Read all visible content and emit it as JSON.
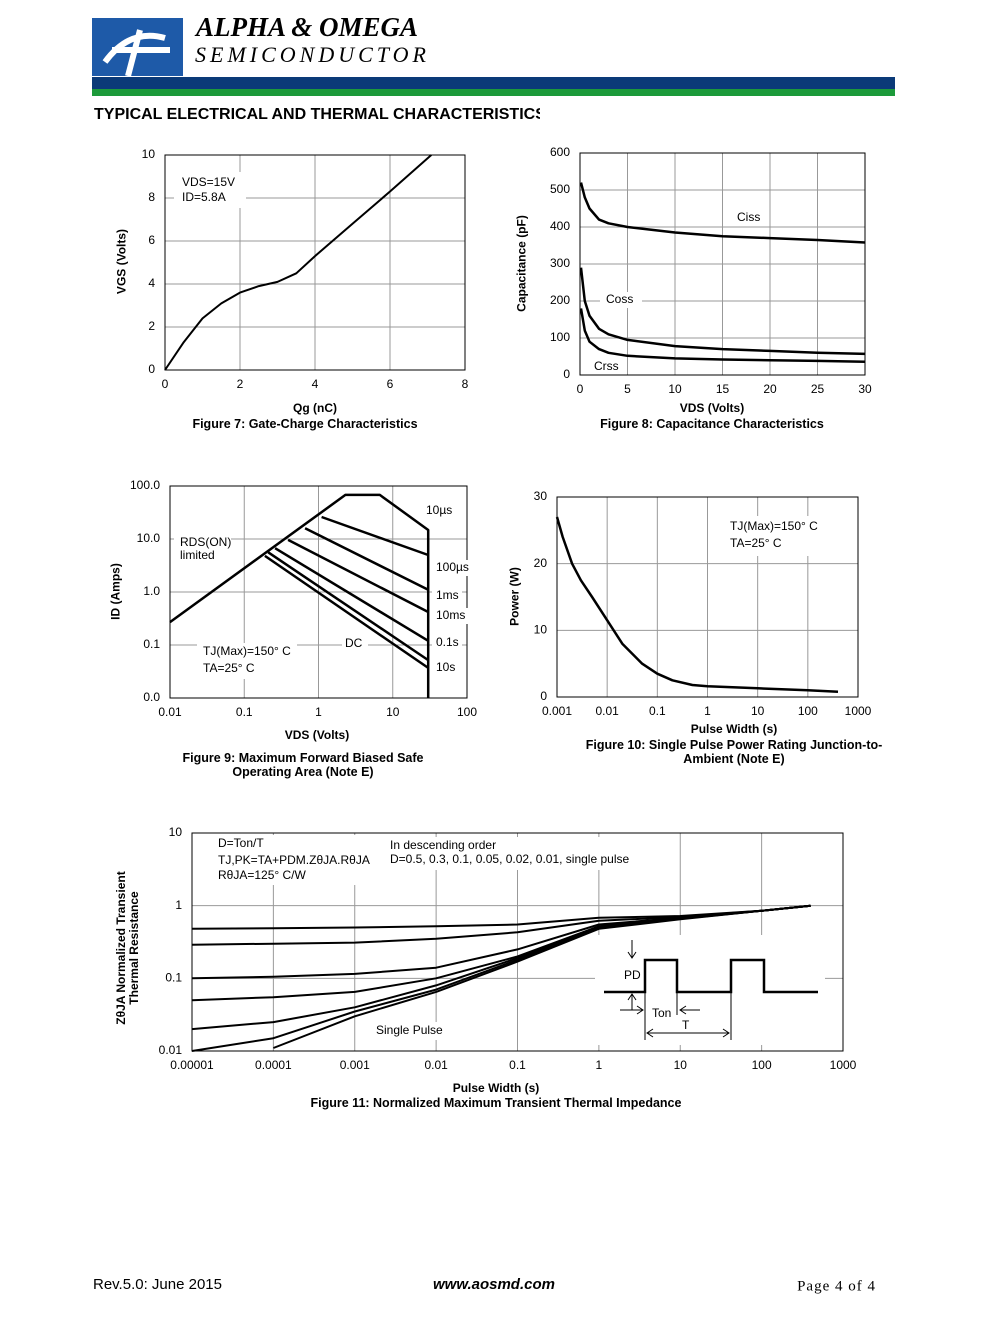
{
  "header": {
    "company": "ALPHA & OMEGA",
    "division": "SEMICONDUCTOR"
  },
  "section_title": "TYPICAL ELECTRICAL AND THERMAL CHARACTERISTICS",
  "chart_data": [
    {
      "type": "line",
      "title": "Figure 7: Gate-Charge Characteristics",
      "xlabel": "Qg (nC)",
      "ylabel": "VGS (Volts)",
      "annotations": [
        "VDS=15V",
        "ID=5.8A"
      ],
      "x": [
        0,
        0.5,
        1,
        1.5,
        2,
        2.5,
        3,
        3.5,
        4,
        5,
        6,
        7.1
      ],
      "values": [
        0,
        1.3,
        2.4,
        3.1,
        3.6,
        3.9,
        4.1,
        4.5,
        5.3,
        6.8,
        8.3,
        10
      ],
      "color": "#000000",
      "xlim": [
        0,
        8
      ],
      "xticks": [
        0,
        2,
        4,
        6,
        8
      ],
      "ylim": [
        0,
        10
      ],
      "yticks": [
        0,
        2,
        4,
        6,
        8,
        10
      ],
      "grid": true
    },
    {
      "type": "line",
      "title": "Figure 8: Capacitance Characteristics",
      "xlabel": "VDS (Volts)",
      "ylabel": "Capacitance (pF)",
      "x": [
        0.1,
        0.5,
        1,
        2,
        3,
        5,
        10,
        15,
        20,
        25,
        30
      ],
      "series": [
        {
          "name": "Ciss",
          "color": "#000000",
          "values": [
            520,
            480,
            450,
            420,
            410,
            400,
            385,
            375,
            370,
            365,
            358
          ]
        },
        {
          "name": "Coss",
          "color": "#000000",
          "values": [
            290,
            200,
            160,
            125,
            110,
            95,
            78,
            70,
            65,
            60,
            57
          ]
        },
        {
          "name": "Crss",
          "color": "#000000",
          "values": [
            180,
            120,
            90,
            70,
            60,
            52,
            45,
            42,
            40,
            38,
            36
          ]
        }
      ],
      "xlim": [
        0,
        30
      ],
      "xticks": [
        0,
        5,
        10,
        15,
        20,
        25,
        30
      ],
      "ylim": [
        0,
        600
      ],
      "yticks": [
        0,
        100,
        200,
        300,
        400,
        500,
        600
      ],
      "grid": true
    },
    {
      "type": "line",
      "title": "Figure 9: Maximum Forward Biased Safe Operating Area (Note E)",
      "xlabel": "VDS (Volts)",
      "ylabel": "ID (Amps)",
      "annotations": [
        "RDS(ON)",
        "limited",
        "TJ(Max)=150° C",
        "TA=25° C"
      ],
      "xlog": true,
      "ylog": true,
      "series": [
        {
          "name": "10µs",
          "color": "#000000",
          "x": [
            0.01,
            2.3,
            6.7,
            30,
            30
          ],
          "values": [
            0.27,
            68,
            68,
            14.8,
            0.01
          ]
        },
        {
          "name": "100µs",
          "color": "#000000",
          "x": [
            1.1,
            30
          ],
          "values": [
            26,
            5
          ]
        },
        {
          "name": "1ms",
          "color": "#000000",
          "x": [
            0.66,
            30
          ],
          "values": [
            16,
            1.1
          ]
        },
        {
          "name": "10ms",
          "color": "#000000",
          "x": [
            0.39,
            30
          ],
          "values": [
            9.6,
            0.42
          ]
        },
        {
          "name": "0.1s",
          "color": "#000000",
          "x": [
            0.26,
            30
          ],
          "values": [
            6.7,
            0.12
          ]
        },
        {
          "name": "10s",
          "color": "#000000",
          "x": [
            0.21,
            30
          ],
          "values": [
            5.6,
            0.052
          ]
        },
        {
          "name": "DC",
          "color": "#000000",
          "x": [
            0.19,
            30
          ],
          "values": [
            4.8,
            0.037
          ]
        }
      ],
      "xlim": [
        0.01,
        100
      ],
      "xticks": [
        0.01,
        0.1,
        1,
        10,
        100
      ],
      "ylim": [
        0.01,
        100
      ],
      "yticks": [
        {
          "value": 0.01,
          "label": "0.0"
        },
        0.1,
        {
          "value": 1,
          "label": "1.0"
        },
        {
          "value": 10,
          "label": "10.0"
        },
        {
          "value": 100,
          "label": "100.0"
        }
      ],
      "grid": true
    },
    {
      "type": "line",
      "title": "Figure 10: Single Pulse Power Rating Junction-to-Ambient (Note E)",
      "xlabel": "Pulse Width (s)",
      "ylabel": "Power (W)",
      "annotations": [
        "TJ(Max)=150° C",
        "TA=25° C"
      ],
      "xlog": true,
      "x": [
        0.001,
        0.0013,
        0.002,
        0.003,
        0.005,
        0.01,
        0.02,
        0.05,
        0.1,
        0.2,
        0.5,
        1,
        10,
        100,
        400
      ],
      "values": [
        27,
        24,
        20,
        17.5,
        15,
        11.5,
        8,
        5,
        3.5,
        2.5,
        1.8,
        1.6,
        1.3,
        1.0,
        0.8
      ],
      "color": "#000000",
      "xlim": [
        0.001,
        1000
      ],
      "xticks": [
        0.001,
        0.01,
        0.1,
        1,
        10,
        100,
        1000
      ],
      "ylim": [
        0,
        30
      ],
      "yticks": [
        0,
        10,
        20,
        30
      ],
      "grid": true
    },
    {
      "type": "line",
      "title": "Figure 11: Normalized Maximum Transient Thermal Impedance",
      "xlabel": "Pulse Width (s)",
      "ylabel": "ZθJA Normalized Transient Thermal Resistance",
      "annotations": [
        "D=Ton/T",
        "TJ,PK=TA+PDM.ZθJA.RθJA",
        "RθJA=125° C/W",
        "In descending order",
        "D=0.5, 0.3, 0.1, 0.05, 0.02, 0.01, single pulse"
      ],
      "inset_labels": [
        "PD",
        "Ton",
        "T"
      ],
      "xlog": true,
      "ylog": true,
      "x": [
        1e-05,
        0.0001,
        0.001,
        0.01,
        0.1,
        1,
        10,
        100,
        400
      ],
      "series": [
        {
          "color": "#000000",
          "values": [
            0.48,
            0.49,
            0.5,
            0.52,
            0.55,
            0.68,
            0.72,
            0.85,
            1.0
          ]
        },
        {
          "color": "#000000",
          "values": [
            0.29,
            0.3,
            0.31,
            0.35,
            0.43,
            0.62,
            0.7,
            0.85,
            1.0
          ]
        },
        {
          "color": "#000000",
          "values": [
            0.1,
            0.105,
            0.115,
            0.14,
            0.25,
            0.55,
            0.68,
            0.85,
            1.0
          ]
        },
        {
          "color": "#000000",
          "values": [
            0.05,
            0.055,
            0.065,
            0.1,
            0.2,
            0.52,
            0.67,
            0.85,
            1.0
          ]
        },
        {
          "color": "#000000",
          "values": [
            0.02,
            0.025,
            0.04,
            0.08,
            0.19,
            0.5,
            0.66,
            0.85,
            1.0
          ]
        },
        {
          "color": "#000000",
          "values": [
            0.01,
            0.015,
            0.035,
            0.07,
            0.18,
            0.5,
            0.66,
            0.85,
            1.0
          ]
        },
        {
          "name": "Single Pulse",
          "color": "#000000",
          "values": [
            null,
            0.011,
            0.03,
            0.065,
            0.17,
            0.48,
            0.65,
            0.85,
            1.0
          ]
        }
      ],
      "xlim": [
        1e-05,
        1000
      ],
      "xticks": [
        1e-05,
        0.0001,
        0.001,
        0.01,
        0.1,
        1,
        10,
        100,
        1000
      ],
      "ylim": [
        0.01,
        10
      ],
      "yticks": [
        0.01,
        0.1,
        1,
        10
      ],
      "grid": true
    }
  ],
  "footer": {
    "revision": "Rev.5.0: June 2015",
    "website": "www.aosmd.com",
    "page": "Page 4 of 4"
  }
}
